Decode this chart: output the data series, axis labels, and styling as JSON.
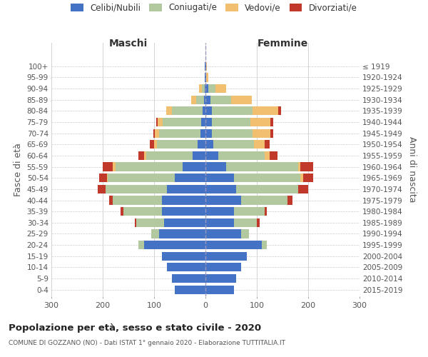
{
  "age_groups": [
    "0-4",
    "5-9",
    "10-14",
    "15-19",
    "20-24",
    "25-29",
    "30-34",
    "35-39",
    "40-44",
    "45-49",
    "50-54",
    "55-59",
    "60-64",
    "65-69",
    "70-74",
    "75-79",
    "80-84",
    "85-89",
    "90-94",
    "95-99",
    "100+"
  ],
  "birth_years": [
    "2015-2019",
    "2010-2014",
    "2005-2009",
    "2000-2004",
    "1995-1999",
    "1990-1994",
    "1985-1989",
    "1980-1984",
    "1975-1979",
    "1970-1974",
    "1965-1969",
    "1960-1964",
    "1955-1959",
    "1950-1954",
    "1945-1949",
    "1940-1944",
    "1935-1939",
    "1930-1934",
    "1925-1929",
    "1920-1924",
    "≤ 1919"
  ],
  "colors": {
    "celibi": "#4472c4",
    "coniugati": "#b2c9a0",
    "vedovi": "#f0c070",
    "divorziati": "#c0392b"
  },
  "males": {
    "celibi": [
      60,
      65,
      75,
      85,
      120,
      90,
      80,
      85,
      85,
      75,
      60,
      45,
      25,
      15,
      10,
      8,
      5,
      3,
      2,
      1,
      1
    ],
    "coniugati": [
      0,
      0,
      0,
      0,
      10,
      15,
      55,
      75,
      95,
      120,
      130,
      130,
      90,
      80,
      80,
      75,
      60,
      15,
      5,
      0,
      0
    ],
    "vedovi": [
      0,
      0,
      0,
      0,
      0,
      0,
      0,
      0,
      0,
      0,
      2,
      5,
      5,
      5,
      8,
      10,
      12,
      10,
      5,
      1,
      0
    ],
    "divorziati": [
      0,
      0,
      0,
      0,
      0,
      0,
      3,
      5,
      8,
      15,
      15,
      20,
      10,
      8,
      3,
      3,
      0,
      0,
      0,
      0,
      0
    ]
  },
  "females": {
    "celibi": [
      55,
      60,
      70,
      80,
      110,
      70,
      55,
      55,
      70,
      60,
      55,
      40,
      25,
      15,
      12,
      12,
      12,
      10,
      5,
      1,
      1
    ],
    "coniugati": [
      0,
      0,
      0,
      0,
      10,
      15,
      45,
      60,
      90,
      120,
      130,
      140,
      90,
      80,
      80,
      75,
      80,
      40,
      15,
      0,
      0
    ],
    "vedovi": [
      0,
      0,
      0,
      0,
      0,
      0,
      0,
      0,
      0,
      0,
      5,
      5,
      10,
      20,
      35,
      40,
      50,
      40,
      20,
      5,
      2
    ],
    "divorziati": [
      0,
      0,
      0,
      0,
      0,
      0,
      5,
      5,
      10,
      20,
      20,
      25,
      15,
      10,
      5,
      5,
      5,
      0,
      0,
      0,
      0
    ]
  },
  "xlim": 300,
  "title": "Popolazione per età, sesso e stato civile - 2020",
  "subtitle": "COMUNE DI GOZZANO (NO) - Dati ISTAT 1° gennaio 2020 - Elaborazione TUTTITALIA.IT",
  "ylabel_left": "Fasce di età",
  "ylabel_right": "Anni di nascita",
  "xlabel_left": "Maschi",
  "xlabel_right": "Femmine",
  "legend_labels": [
    "Celibi/Nubili",
    "Coniugati/e",
    "Vedovi/e",
    "Divorziati/e"
  ],
  "background_color": "#ffffff",
  "grid_color": "#cccccc"
}
